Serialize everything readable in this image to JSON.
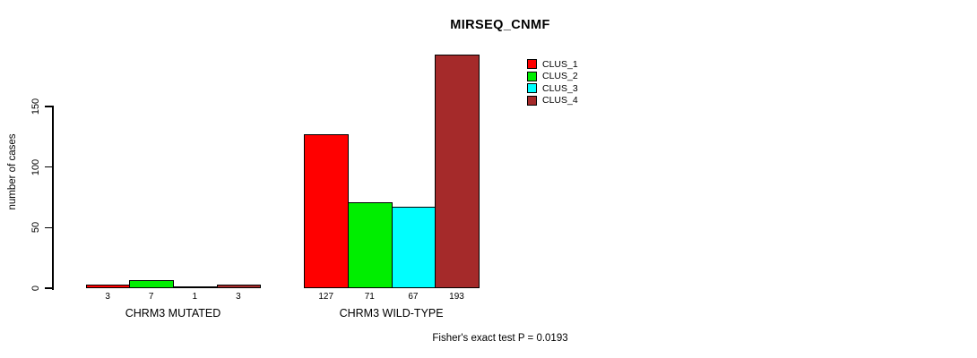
{
  "chart_data": {
    "type": "bar",
    "title": "MIRSEQ_CNMF",
    "ylabel": "number of cases",
    "xlabel": "",
    "ylim": [
      0,
      200
    ],
    "yticks": [
      0,
      50,
      100,
      150
    ],
    "grid": false,
    "legend_position": "top-right",
    "categories": [
      "CHRM3 MUTATED",
      "CHRM3 WILD-TYPE"
    ],
    "series": [
      {
        "name": "CLUS_1",
        "color": "#ff0000",
        "values": [
          3,
          127
        ]
      },
      {
        "name": "CLUS_2",
        "color": "#00ee00",
        "values": [
          7,
          71
        ]
      },
      {
        "name": "CLUS_3",
        "color": "#00ffff",
        "values": [
          1,
          67
        ]
      },
      {
        "name": "CLUS_4",
        "color": "#a52a2a",
        "values": [
          3,
          193
        ]
      }
    ],
    "value_labels": {
      "CHRM3 MUTATED": [
        "3",
        "7",
        "1",
        "3"
      ],
      "CHRM3 WILD-TYPE": [
        "127",
        "71",
        "67",
        "193"
      ]
    },
    "annotation": "Fisher's exact test P = 0.0193"
  }
}
